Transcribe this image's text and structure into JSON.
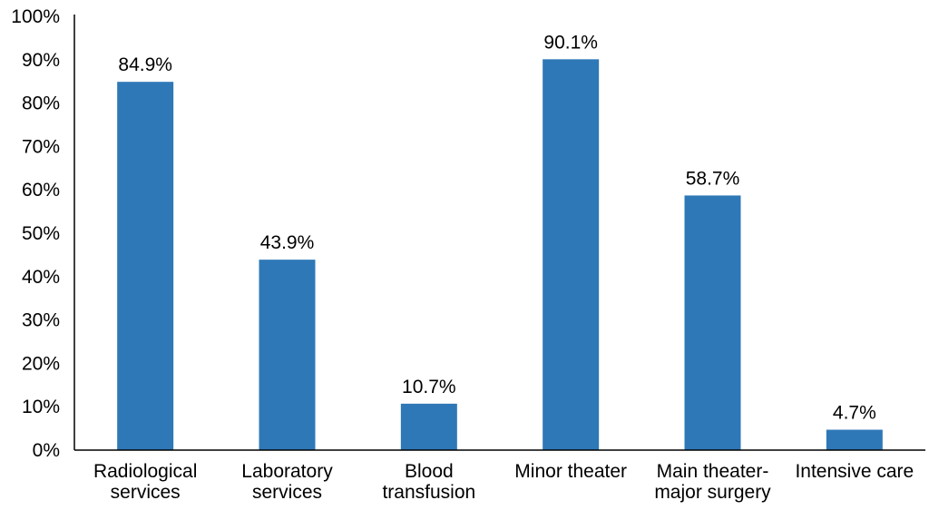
{
  "chart_data": {
    "type": "bar",
    "title": "",
    "xlabel": "",
    "ylabel": "",
    "categories": [
      [
        "Radiological",
        "services"
      ],
      [
        "Laboratory",
        "services"
      ],
      [
        "Blood",
        "transfusion"
      ],
      [
        "Minor theater"
      ],
      [
        "Main theater-",
        "major surgery"
      ],
      [
        "Intensive care"
      ]
    ],
    "values": [
      84.9,
      43.9,
      10.7,
      90.1,
      58.7,
      4.7
    ],
    "value_labels": [
      "84.9%",
      "43.9%",
      "10.7%",
      "90.1%",
      "58.7%",
      "4.7%"
    ],
    "ylim": [
      0,
      100
    ],
    "yticks": [
      0,
      10,
      20,
      30,
      40,
      50,
      60,
      70,
      80,
      90,
      100
    ],
    "ytick_labels": [
      "0%",
      "10%",
      "20%",
      "30%",
      "40%",
      "50%",
      "60%",
      "70%",
      "80%",
      "90%",
      "100%"
    ],
    "grid": false,
    "legend": "none",
    "bar_color": "#2e78b7",
    "axis_color": "#000000"
  }
}
